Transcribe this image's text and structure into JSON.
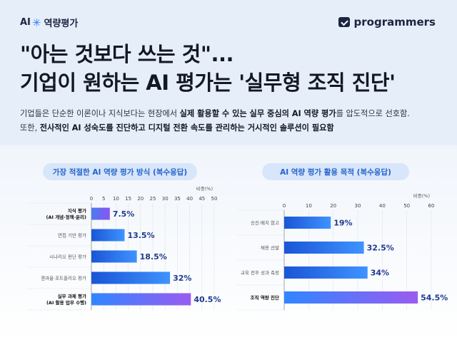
{
  "header": {
    "logo_ai": "AI",
    "logo_text": "역량평가",
    "brand": "programmers"
  },
  "headline": {
    "line1": "\"아는 것보다 쓰는 것\"...",
    "line2": "기업이 원하는 AI 평가는 '실무형 조직 진단'"
  },
  "subtitle": {
    "line1_a": "기업들은 단순한 이론이나 지식보다는 현장에서 ",
    "line1_b": "실제 활용할 수 있는 실무 중심의 AI 역량 평가",
    "line1_c": "를 압도적으로 선호함.",
    "line2_a": "또한, ",
    "line2_b": "전사적인 AI 성숙도를 진단하고 디지털 전환 속도를 관리하는 거시적인 솔루션이 필요함",
    "line2_c": ""
  },
  "colors": {
    "bar_start": "#1a55d6",
    "bar_end": "#3f93ff",
    "bar_first_start": "#4a7bf0",
    "bar_first_end": "#8a55f2",
    "bar_last_start": "#2f86ff",
    "bar_last_end": "#9a5cf0"
  },
  "chart_data": [
    {
      "type": "bar",
      "title": "가장 적절한 AI 역량 평가 방식 (복수응답)",
      "unit_label": "비중(%)",
      "orientation": "horizontal",
      "xlim": [
        0,
        50
      ],
      "ticks": [
        "0",
        "5",
        "10",
        "15",
        "20",
        "25",
        "30",
        "35",
        "40",
        "45",
        "50"
      ],
      "categories": [
        [
          "지식 평가",
          "(AI 개념·정책·윤리)"
        ],
        [
          "면접 기반 평가"
        ],
        [
          "시나리오 판단 평가"
        ],
        [
          "결과물·포트폴리오 평가"
        ],
        [
          "실무 과제 평가",
          "(AI 활용 업무 수행)"
        ]
      ],
      "values": [
        7.5,
        13.5,
        18.5,
        32,
        40.5
      ],
      "labels": [
        "7.5%",
        "13.5%",
        "18.5%",
        "32%",
        "40.5%"
      ],
      "bold_categories": [
        0,
        4
      ]
    },
    {
      "type": "bar",
      "title": "AI 역량 평가 활용 목적 (복수응답)",
      "unit_label": "비중(%)",
      "orientation": "horizontal",
      "xlim": [
        0,
        60
      ],
      "ticks": [
        "0",
        "10",
        "20",
        "30",
        "40",
        "50",
        "60"
      ],
      "categories": [
        [
          "승진·배치 참고"
        ],
        [
          "채용 선발"
        ],
        [
          "교육 전후 성과 측정"
        ],
        [
          "조직 역량 진단"
        ]
      ],
      "values": [
        19,
        32.5,
        34,
        54.5
      ],
      "labels": [
        "19%",
        "32.5%",
        "34%",
        "54.5%"
      ],
      "bold_categories": [
        3
      ]
    }
  ]
}
